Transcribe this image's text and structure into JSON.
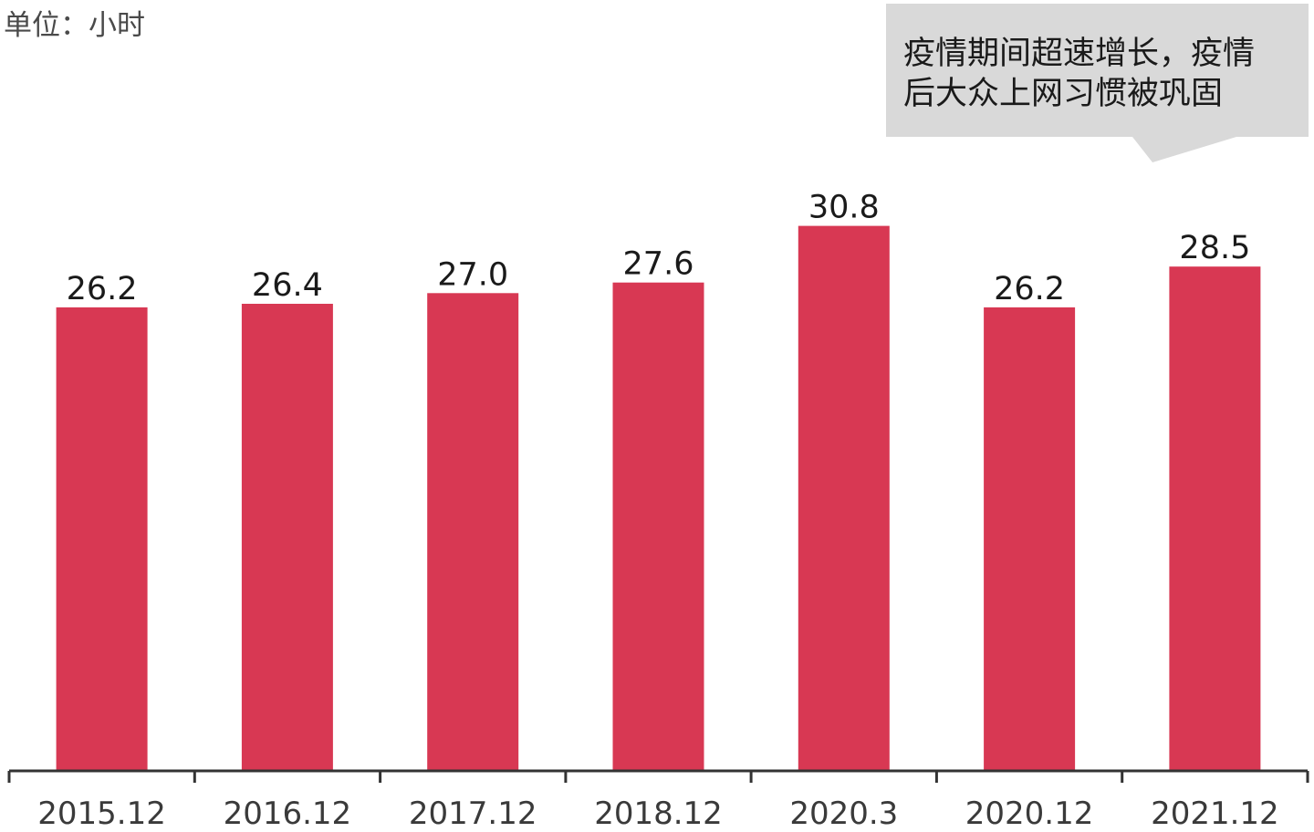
{
  "unit_label": "单位：小时",
  "callout": {
    "lines": [
      "疫情期间超速增长，疫情",
      "后大众上网习惯被巩固"
    ]
  },
  "colors": {
    "bar": "#d83853",
    "callout_bg": "#d9d9d9"
  },
  "chart_data": {
    "type": "bar",
    "categories": [
      "2015.12",
      "2016.12",
      "2017.12",
      "2018.12",
      "2020.3",
      "2020.12",
      "2021.12"
    ],
    "values": [
      26.2,
      26.4,
      27.0,
      27.6,
      30.8,
      26.2,
      28.5
    ],
    "value_labels": [
      "26.2",
      "26.4",
      "27.0",
      "27.6",
      "30.8",
      "26.2",
      "28.5"
    ],
    "title": "",
    "xlabel": "",
    "ylabel": "",
    "ylim": [
      0,
      31.4
    ],
    "grid": false,
    "legend": "none"
  }
}
